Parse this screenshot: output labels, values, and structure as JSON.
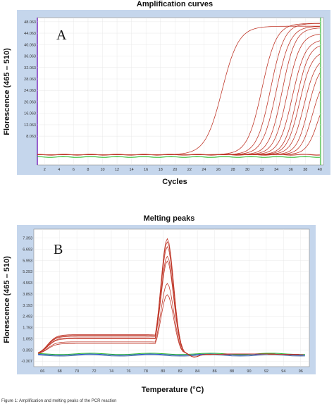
{
  "caption": "Figure 1: Amplification and melting peaks of the PCR reaction",
  "chart_data": [
    {
      "type": "line",
      "title": "Amplification curves",
      "panel_label": "A",
      "xlabel": "Cycles",
      "ylabel": "Florescence (465 – 510)",
      "xlim": [
        1,
        40.5
      ],
      "ylim": [
        -2,
        49.5
      ],
      "x_ticks": [
        "2",
        "4",
        "6",
        "8",
        "10",
        "12",
        "14",
        "16",
        "18",
        "20",
        "22",
        "24",
        "26",
        "28",
        "30",
        "32",
        "34",
        "36",
        "38",
        "40"
      ],
      "x_tick_values": [
        2,
        4,
        6,
        8,
        10,
        12,
        14,
        16,
        18,
        20,
        22,
        24,
        26,
        28,
        30,
        32,
        34,
        36,
        38,
        40
      ],
      "y_ticks": [
        "8.063",
        "12.063",
        "16.063",
        "20.063",
        "24.063",
        "28.063",
        "32.063",
        "36.063",
        "40.063",
        "44.063",
        "48.063"
      ],
      "y_tick_values": [
        8.063,
        12.063,
        16.063,
        20.063,
        24.063,
        28.063,
        32.063,
        36.063,
        40.063,
        44.063,
        48.063
      ],
      "baseline": 1.6,
      "series_color": "#c0392b",
      "curves": [
        {
          "midpoint": 26.5,
          "plateau": 46.5,
          "slope": 1.15
        },
        {
          "midpoint": 32.0,
          "plateau": 47.5,
          "slope": 1.0
        },
        {
          "midpoint": 33.2,
          "plateau": 47.5,
          "slope": 0.95
        },
        {
          "midpoint": 34.0,
          "plateau": 46.5,
          "slope": 0.95
        },
        {
          "midpoint": 34.8,
          "plateau": 46.0,
          "slope": 0.9
        },
        {
          "midpoint": 35.5,
          "plateau": 44.0,
          "slope": 0.9
        },
        {
          "midpoint": 36.2,
          "plateau": 42.0,
          "slope": 0.9
        },
        {
          "midpoint": 36.8,
          "plateau": 40.5,
          "slope": 0.85
        },
        {
          "midpoint": 37.2,
          "plateau": 38.0,
          "slope": 0.85
        },
        {
          "midpoint": 37.8,
          "plateau": 36.0,
          "slope": 0.85
        },
        {
          "midpoint": 38.4,
          "plateau": 34.0,
          "slope": 0.8
        },
        {
          "midpoint": 39.0,
          "plateau": 30.0,
          "slope": 0.8
        },
        {
          "midpoint": 39.8,
          "plateau": 26.0,
          "slope": 0.8
        }
      ],
      "flat_series": [
        {
          "color": "#2eb82e",
          "level": 0.8
        },
        {
          "color": "#c0392b",
          "level": 1.6
        }
      ]
    },
    {
      "type": "line",
      "title": "Melting peaks",
      "panel_label": "B",
      "xlabel": "Temperature (°C)",
      "ylabel": "Florescence (465 – 510)",
      "xlim": [
        65,
        97
      ],
      "ylim": [
        -0.65,
        7.95
      ],
      "x_ticks": [
        "66",
        "68",
        "70",
        "72",
        "74",
        "76",
        "78",
        "80",
        "82",
        "84",
        "86",
        "88",
        "90",
        "92",
        "94",
        "96"
      ],
      "x_tick_values": [
        66,
        68,
        70,
        72,
        74,
        76,
        78,
        80,
        82,
        84,
        86,
        88,
        90,
        92,
        94,
        96
      ],
      "y_ticks": [
        "-0.307",
        "0.393",
        "1.093",
        "1.793",
        "2.493",
        "3.193",
        "3.893",
        "4.593",
        "5.293",
        "5.993",
        "6.693",
        "7.393"
      ],
      "y_tick_values": [
        -0.307,
        0.393,
        1.093,
        1.793,
        2.493,
        3.193,
        3.893,
        4.593,
        5.293,
        5.993,
        6.693,
        7.393
      ],
      "peak_temperature": 80.5,
      "series_color": "#c0392b",
      "peaks": [
        {
          "height": 7.25,
          "shoulder": 1.25
        },
        {
          "height": 7.05,
          "shoulder": 1.2
        },
        {
          "height": 6.75,
          "shoulder": 1.15
        },
        {
          "height": 6.15,
          "shoulder": 1.05
        },
        {
          "height": 5.85,
          "shoulder": 1.0
        },
        {
          "height": 4.45,
          "shoulder": 0.8
        },
        {
          "height": 3.75,
          "shoulder": 0.7
        }
      ],
      "flat_series": [
        {
          "color": "#1f4fd1",
          "level": 0.1
        },
        {
          "color": "#5d7ea8",
          "level": 0.05
        },
        {
          "color": "#2eb82e",
          "level": 0.15
        }
      ]
    }
  ]
}
